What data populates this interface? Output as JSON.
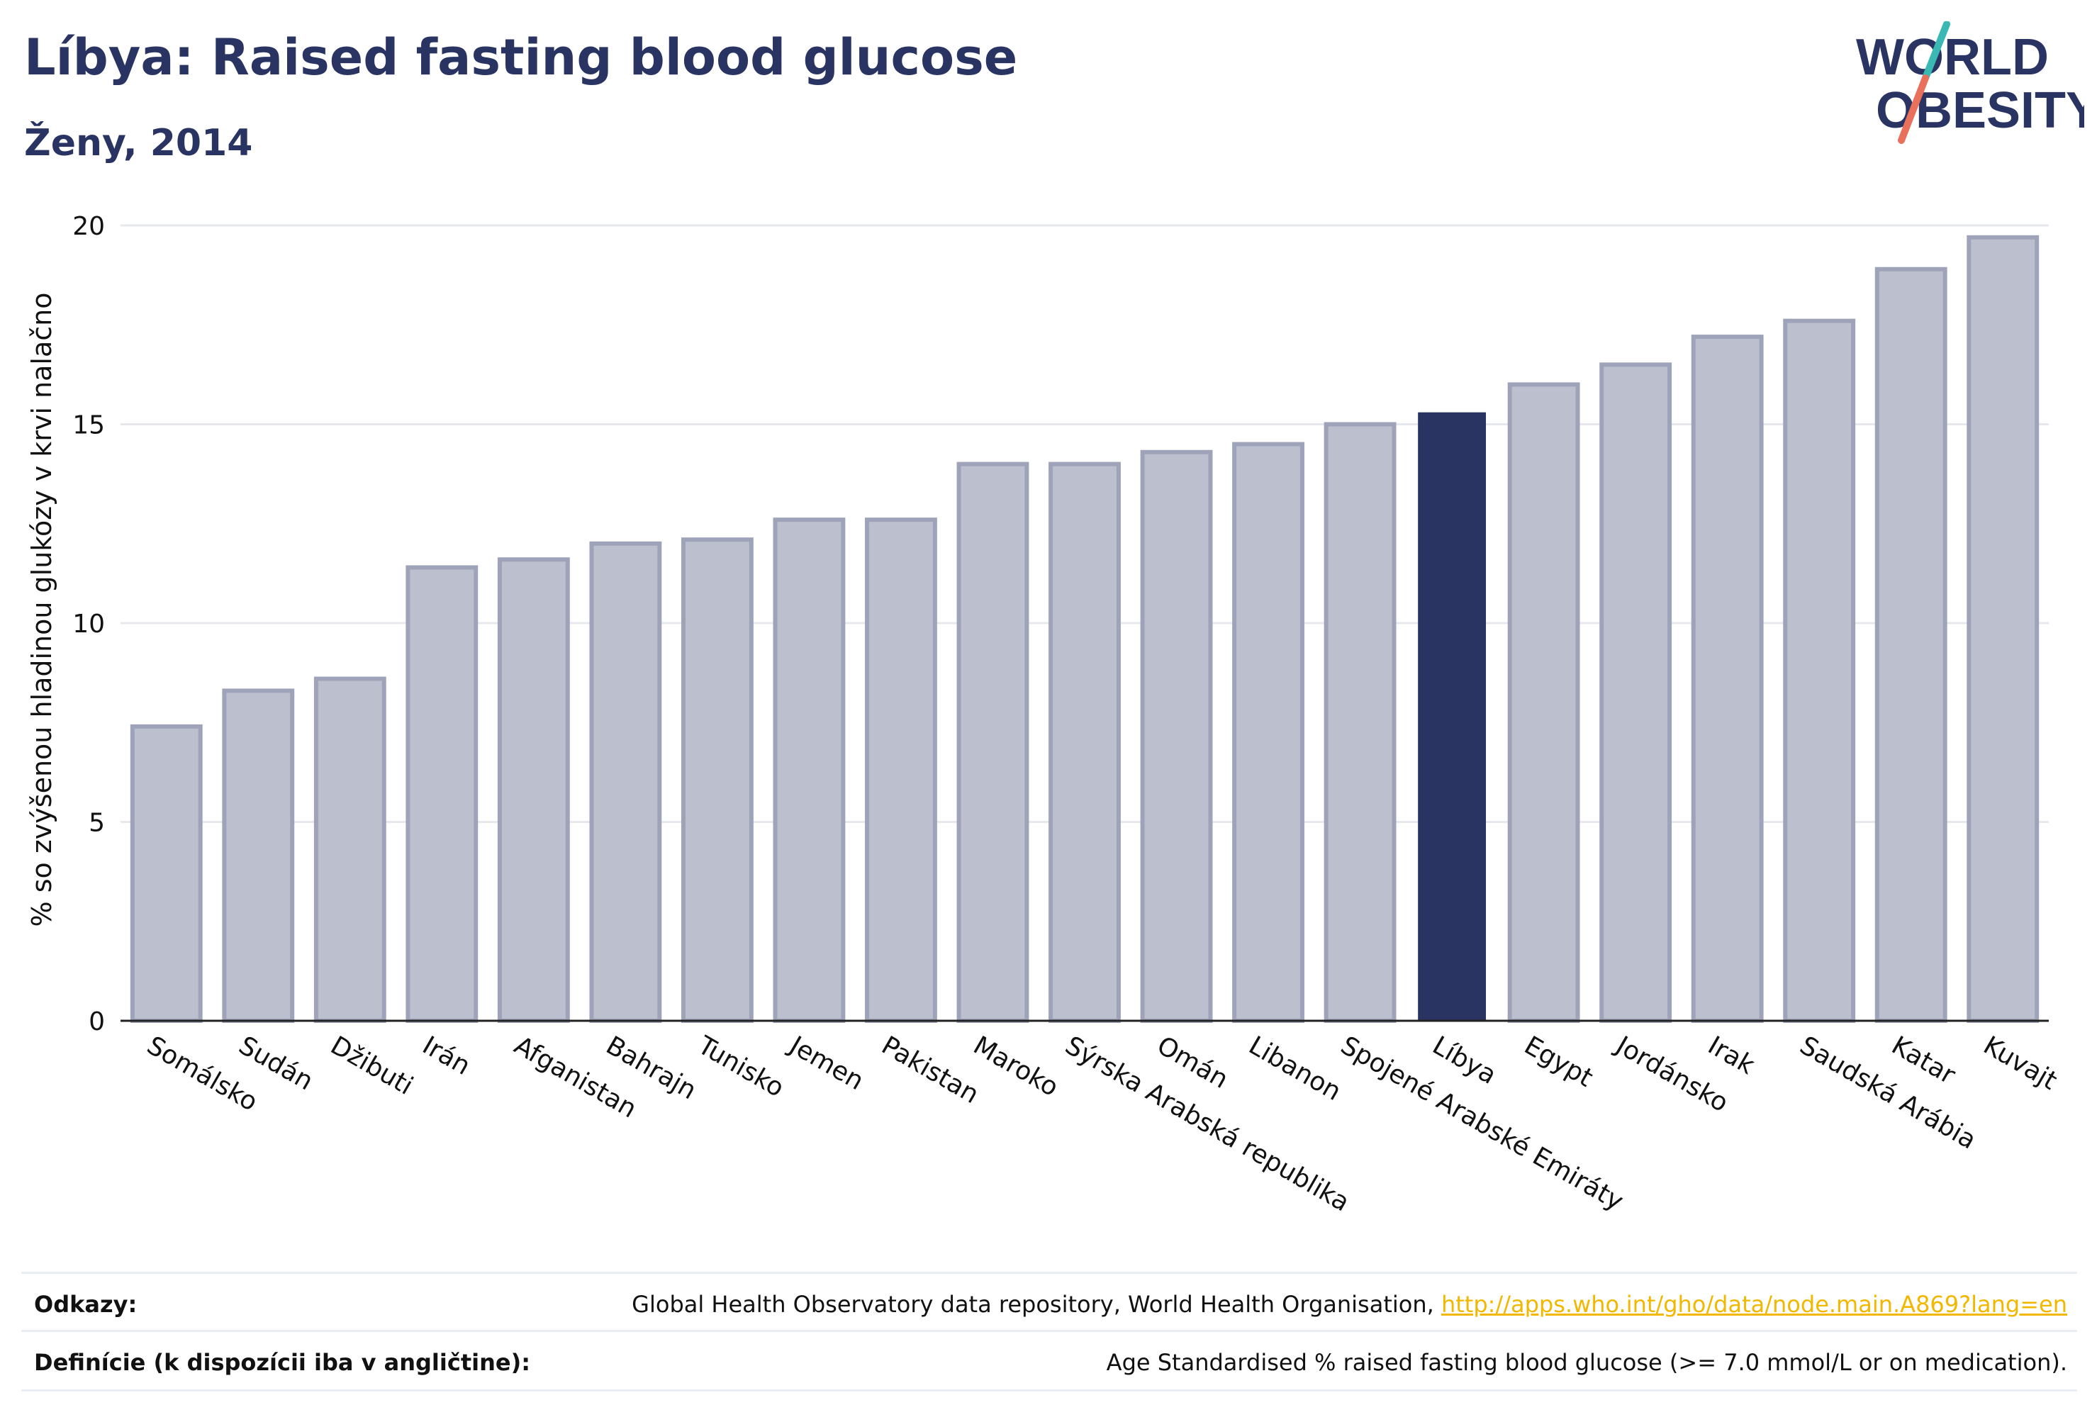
{
  "header": {
    "title": "Líbya: Raised fasting blood glucose",
    "subtitle": "Ženy, 2014"
  },
  "logo": {
    "line1": "WORLD",
    "line2": "OBESITY",
    "colors": {
      "text": "#2a3462",
      "slash_teal": "#3ab8b3",
      "slash_red": "#e9705a"
    }
  },
  "chart_data": {
    "type": "bar",
    "ylabel": "% so zvýšenou hladinou glukózy v krvi nalačno",
    "xlabel": "",
    "ylim": [
      0,
      20
    ],
    "yticks": [
      0,
      5,
      10,
      15,
      20
    ],
    "grid": true,
    "highlight": "Líbya",
    "colors": {
      "bar": "#bcc0ce",
      "bar_border": "#9ea3ba",
      "highlight": "#2a3462",
      "grid": "#e6e8ee"
    },
    "categories": [
      "Somálsko",
      "Sudán",
      "Džibuti",
      "Irán",
      "Afganistan",
      "Bahrajn",
      "Tunisko",
      "Jemen",
      "Pakistan",
      "Maroko",
      "Sýrska Arabská republika",
      "Omán",
      "Libanon",
      "Spojené Arabské Emiráty",
      "Líbya",
      "Egypt",
      "Jordánsko",
      "Irak",
      "Saudská Arábia",
      "Katar",
      "Kuvajt"
    ],
    "values": [
      7.4,
      8.3,
      8.6,
      11.4,
      11.6,
      12.0,
      12.1,
      12.6,
      12.6,
      14.0,
      14.0,
      14.3,
      14.5,
      15.0,
      15.3,
      16.0,
      16.5,
      17.2,
      17.6,
      18.9,
      19.7
    ]
  },
  "footer": {
    "references_label": "Odkazy:",
    "references_text": "Global Health Observatory data repository, World Health Organisation, ",
    "references_link": "http://apps.who.int/gho/data/node.main.A869?lang=en",
    "definitions_label": "Definície (k dispozícii iba v angličtine):",
    "definitions_text": "Age Standardised % raised fasting blood glucose (>= 7.0 mmol/L or on medication)."
  }
}
